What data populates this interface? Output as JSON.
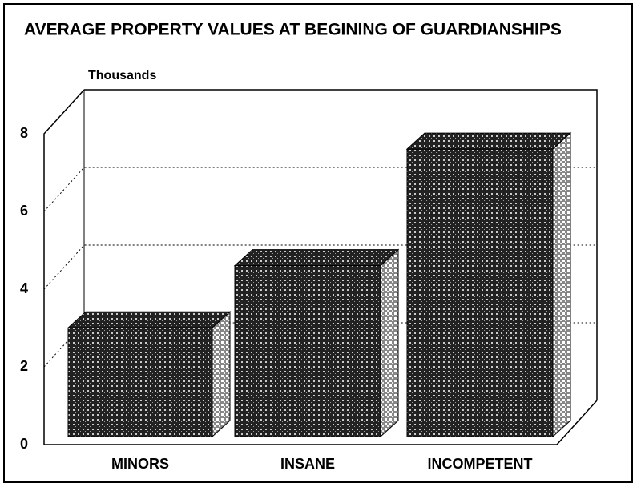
{
  "chart_data": {
    "type": "bar3d",
    "title": "AVERAGE PROPERTY VALUES AT BEGINING OF GUARDIANSHIPS",
    "y_label": "Thousands",
    "categories": [
      "MINORS",
      "INSANE",
      "INCOMPETENT"
    ],
    "values": [
      2.8,
      4.4,
      7.4
    ],
    "color": "#222222",
    "ylim": [
      0,
      8
    ],
    "yticks": [
      0,
      2,
      4,
      6,
      8
    ],
    "grid": true
  }
}
